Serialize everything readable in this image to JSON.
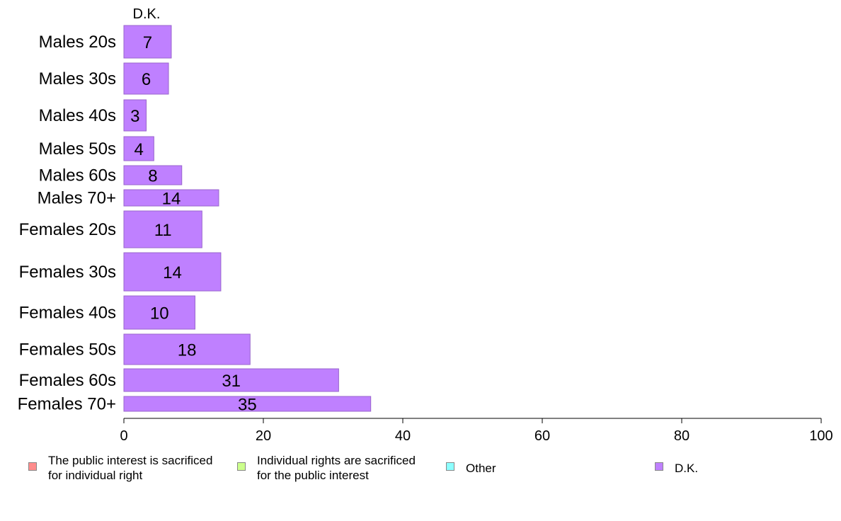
{
  "chart_data": {
    "type": "bar",
    "orientation": "horizontal",
    "column_title": "D.K.",
    "categories": [
      "Males 20s",
      "Males 30s",
      "Males 40s",
      "Males 50s",
      "Males 60s",
      "Males 70+",
      "Females 20s",
      "Females 30s",
      "Females 40s",
      "Females 50s",
      "Females 60s",
      "Females 70+"
    ],
    "series": [
      {
        "name": "D.K.",
        "color": "#bf80ff",
        "values": [
          7,
          6,
          3,
          4,
          8,
          14,
          11,
          14,
          10,
          18,
          31,
          35
        ],
        "exact_values": [
          6.8,
          6.4,
          3.2,
          4.3,
          8.3,
          13.6,
          11.2,
          13.9,
          10.2,
          18.1,
          30.8,
          35.4
        ]
      }
    ],
    "xlim": [
      0,
      100
    ],
    "xticks": [
      "0",
      "20",
      "40",
      "60",
      "80",
      "100"
    ],
    "legend": [
      {
        "label": "The public interest is sacrificed\nfor individual right",
        "color": "#ff8c8c"
      },
      {
        "label": "Individual rights are sacrificed\nfor the public interest",
        "color": "#ccff8c"
      },
      {
        "label": "Other",
        "color": "#8cffff"
      },
      {
        "label": "D.K.",
        "color": "#bf80ff"
      }
    ],
    "legend_position": "bottom",
    "grid": false
  }
}
